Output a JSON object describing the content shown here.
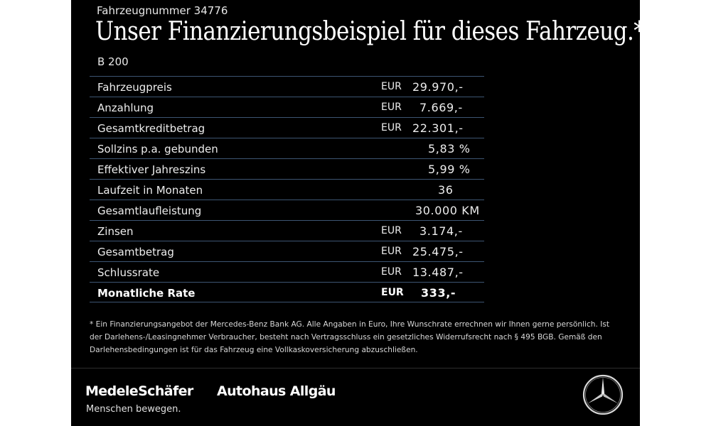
{
  "header": {
    "vehicle_number": "Fahrzeugnummer 34776",
    "headline": "Unser Finanzierungsbeispiel für dieses Fahrzeug.*",
    "model": "B 200"
  },
  "finance_table": {
    "rows": [
      {
        "label": "Fahrzeugpreis",
        "currency": "EUR",
        "value": "29.970,-"
      },
      {
        "label": "Anzahlung",
        "currency": "EUR",
        "value": "7.669,-"
      },
      {
        "label": "Gesamtkreditbetrag",
        "currency": "EUR",
        "value": "22.301,-"
      },
      {
        "label": "Sollzins p.a. gebunden",
        "currency": "",
        "value": "5,83 %"
      },
      {
        "label": "Effektiver Jahreszins",
        "currency": "",
        "value": "5,99 %"
      },
      {
        "label": "Laufzeit in Monaten",
        "currency": "",
        "value": "36"
      },
      {
        "label": "Gesamtlaufleistung",
        "currency": "",
        "value": "30.000 KM"
      },
      {
        "label": "Zinsen",
        "currency": "EUR",
        "value": "3.174,-"
      },
      {
        "label": "Gesamtbetrag",
        "currency": "EUR",
        "value": "25.475,-"
      },
      {
        "label": "Schlussrate",
        "currency": "EUR",
        "value": "13.487,-"
      },
      {
        "label": "Monatliche Rate",
        "currency": "EUR",
        "value": "333,-"
      }
    ]
  },
  "footnote": "* Ein Finanzierungsangebot der Mercedes-Benz Bank AG. Alle Angaben in Euro, Ihre Wunschrate errechnen wir Ihnen gerne persönlich. Ist der Darlehens-/Leasingnehmer Verbraucher, besteht nach Vertragsschluss ein gesetzliches Widerrufsrecht nach § 495 BGB. Gemäß den Darlehensbedingungen ist für das Fahrzeug eine Vollkaskoversicherung abzuschließen.",
  "footer": {
    "dealer_logo": "MedeleSchäfer",
    "dealer_tagline": "Menschen bewegen.",
    "partner_logo": "Autohaus Allgäu",
    "brand_icon": "mercedes-star-icon"
  },
  "colors": {
    "background": "#000000",
    "text": "#ffffff",
    "row_divider": "#3d5573"
  }
}
